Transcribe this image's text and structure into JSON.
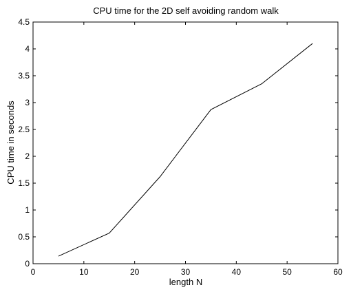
{
  "chart_data": {
    "type": "line",
    "title": "CPU time for the 2D self avoiding random walk",
    "xlabel": "length N",
    "ylabel": "CPU time in seconds",
    "xlim": [
      0,
      60
    ],
    "ylim": [
      0,
      4.5
    ],
    "xticks": [
      0,
      10,
      20,
      30,
      40,
      50,
      60
    ],
    "yticks": [
      0,
      0.5,
      1,
      1.5,
      2,
      2.5,
      3,
      3.5,
      4,
      4.5
    ],
    "xtick_labels": [
      "0",
      "10",
      "20",
      "30",
      "40",
      "50",
      "60"
    ],
    "ytick_labels": [
      "0",
      "0.5",
      "1",
      "1.5",
      "2",
      "2.5",
      "3",
      "3.5",
      "4",
      "4.5"
    ],
    "grid": false,
    "series": [
      {
        "x": [
          5,
          15,
          25,
          35,
          45,
          55
        ],
        "y": [
          0.14,
          0.57,
          1.62,
          2.87,
          3.35,
          4.1
        ],
        "color": "#000000"
      }
    ]
  }
}
